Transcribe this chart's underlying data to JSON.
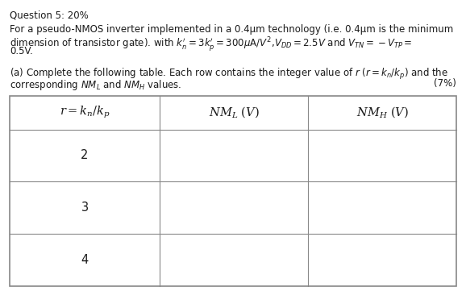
{
  "title": "Question 5: 20%",
  "line1": "For a pseudo-NMOS inverter implemented in a 0.4μm technology (i.e. 0.4μm is the minimum",
  "line2": "dimension of transistor gate). with $k_n' = 3k_p' = 300\\mu$A/$V^2$,$V_{DD} = 2.5V$ and $V_{TN} = -V_{TP} =$",
  "line3": "0.5V.",
  "line4": "(a) Complete the following table. Each row contains the integer value of $r$ ($r = k_n/k_p$) and the",
  "line5": "corresponding $NM_L$ and $NM_H$ values.",
  "line5_right": "(7%)",
  "col_headers": [
    "$r = k_n/k_p$",
    "$NM_L\\ (V)$",
    "$NM_H\\ (V)$"
  ],
  "rows": [
    "2",
    "3",
    "4"
  ],
  "bg_color": "#ffffff",
  "text_color": "#1a1a1a",
  "line_color": "#888888",
  "font_size_title": 8.5,
  "font_size_body": 8.5,
  "font_size_table_header": 10.5,
  "font_size_table_body": 10.5
}
